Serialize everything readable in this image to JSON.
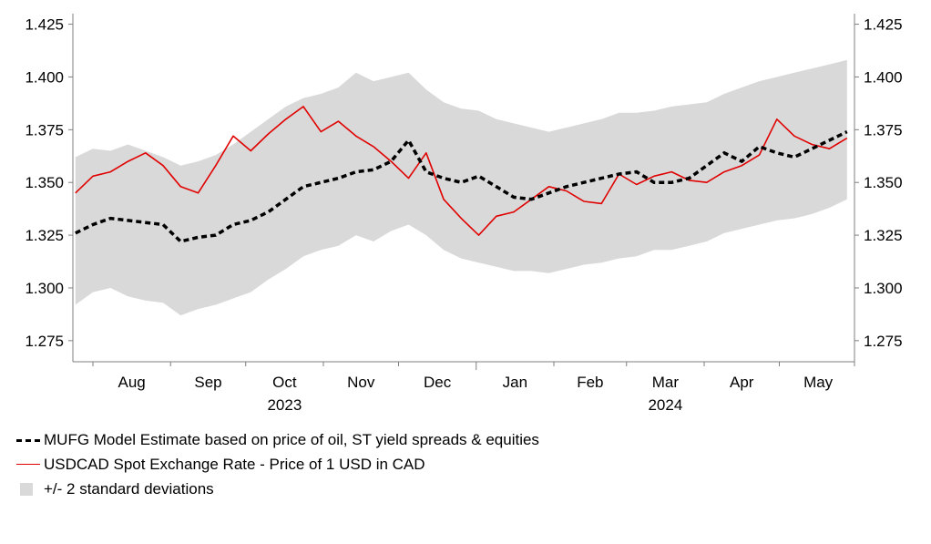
{
  "chart_data": {
    "type": "line",
    "y_ticks": [
      "1.425",
      "1.400",
      "1.375",
      "1.350",
      "1.325",
      "1.300",
      "1.275"
    ],
    "ylim": [
      1.265,
      1.43
    ],
    "month_labels": [
      "Aug",
      "Sep",
      "Oct",
      "Nov",
      "Dec",
      "Jan",
      "Feb",
      "Mar",
      "Apr",
      "May"
    ],
    "year_labels": [
      "2023",
      "2024"
    ],
    "x": [
      "2023-07-25",
      "2023-08-01",
      "2023-08-08",
      "2023-08-15",
      "2023-08-22",
      "2023-08-29",
      "2023-09-05",
      "2023-09-12",
      "2023-09-19",
      "2023-09-26",
      "2023-10-03",
      "2023-10-10",
      "2023-10-17",
      "2023-10-24",
      "2023-10-31",
      "2023-11-07",
      "2023-11-14",
      "2023-11-21",
      "2023-11-28",
      "2023-12-05",
      "2023-12-12",
      "2023-12-19",
      "2023-12-26",
      "2024-01-02",
      "2024-01-09",
      "2024-01-16",
      "2024-01-23",
      "2024-01-30",
      "2024-02-06",
      "2024-02-13",
      "2024-02-20",
      "2024-02-27",
      "2024-03-05",
      "2024-03-12",
      "2024-03-19",
      "2024-03-26",
      "2024-04-02",
      "2024-04-09",
      "2024-04-16",
      "2024-04-23",
      "2024-04-30",
      "2024-05-07",
      "2024-05-14",
      "2024-05-21",
      "2024-05-28"
    ],
    "series": [
      {
        "name": "USDCAD Spot Exchange Rate - Price of 1 USD in CAD",
        "color": "#e00000",
        "values": [
          1.345,
          1.353,
          1.355,
          1.36,
          1.364,
          1.358,
          1.348,
          1.345,
          1.358,
          1.372,
          1.365,
          1.373,
          1.38,
          1.386,
          1.374,
          1.379,
          1.372,
          1.367,
          1.36,
          1.352,
          1.364,
          1.342,
          1.333,
          1.325,
          1.334,
          1.336,
          1.342,
          1.348,
          1.346,
          1.341,
          1.34,
          1.354,
          1.349,
          1.353,
          1.355,
          1.351,
          1.35,
          1.355,
          1.358,
          1.363,
          1.38,
          1.372,
          1.368,
          1.366,
          1.371
        ]
      },
      {
        "name": "MUFG Model Estimate based on price of oil, ST yield spreads & equities",
        "color": "#000000",
        "values": [
          1.326,
          1.33,
          1.333,
          1.332,
          1.331,
          1.33,
          1.322,
          1.324,
          1.325,
          1.33,
          1.332,
          1.336,
          1.342,
          1.348,
          1.35,
          1.352,
          1.355,
          1.356,
          1.36,
          1.37,
          1.355,
          1.352,
          1.35,
          1.353,
          1.348,
          1.343,
          1.342,
          1.345,
          1.348,
          1.35,
          1.352,
          1.354,
          1.355,
          1.35,
          1.35,
          1.352,
          1.358,
          1.364,
          1.36,
          1.367,
          1.364,
          1.362,
          1.366,
          1.37,
          1.374
        ]
      }
    ],
    "band": {
      "name": "+/- 2 standard deviations",
      "color": "#d9d9d9",
      "upper": [
        1.362,
        1.366,
        1.365,
        1.368,
        1.365,
        1.362,
        1.358,
        1.36,
        1.363,
        1.368,
        1.374,
        1.38,
        1.386,
        1.39,
        1.392,
        1.395,
        1.402,
        1.398,
        1.4,
        1.402,
        1.394,
        1.388,
        1.385,
        1.384,
        1.38,
        1.378,
        1.376,
        1.374,
        1.376,
        1.378,
        1.38,
        1.383,
        1.383,
        1.384,
        1.386,
        1.387,
        1.388,
        1.392,
        1.395,
        1.398,
        1.4,
        1.402,
        1.404,
        1.406,
        1.408
      ],
      "lower": [
        1.292,
        1.298,
        1.3,
        1.296,
        1.294,
        1.293,
        1.287,
        1.29,
        1.292,
        1.295,
        1.298,
        1.304,
        1.309,
        1.315,
        1.318,
        1.32,
        1.325,
        1.322,
        1.327,
        1.33,
        1.325,
        1.318,
        1.314,
        1.312,
        1.31,
        1.308,
        1.308,
        1.307,
        1.309,
        1.311,
        1.312,
        1.314,
        1.315,
        1.318,
        1.318,
        1.32,
        1.322,
        1.326,
        1.328,
        1.33,
        1.332,
        1.333,
        1.335,
        1.338,
        1.342
      ]
    }
  },
  "legend": {
    "model": "MUFG Model Estimate based on price of oil, ST yield spreads & equities",
    "spot": "USDCAD Spot Exchange Rate - Price of 1 USD in CAD",
    "band": "+/- 2 standard deviations"
  }
}
